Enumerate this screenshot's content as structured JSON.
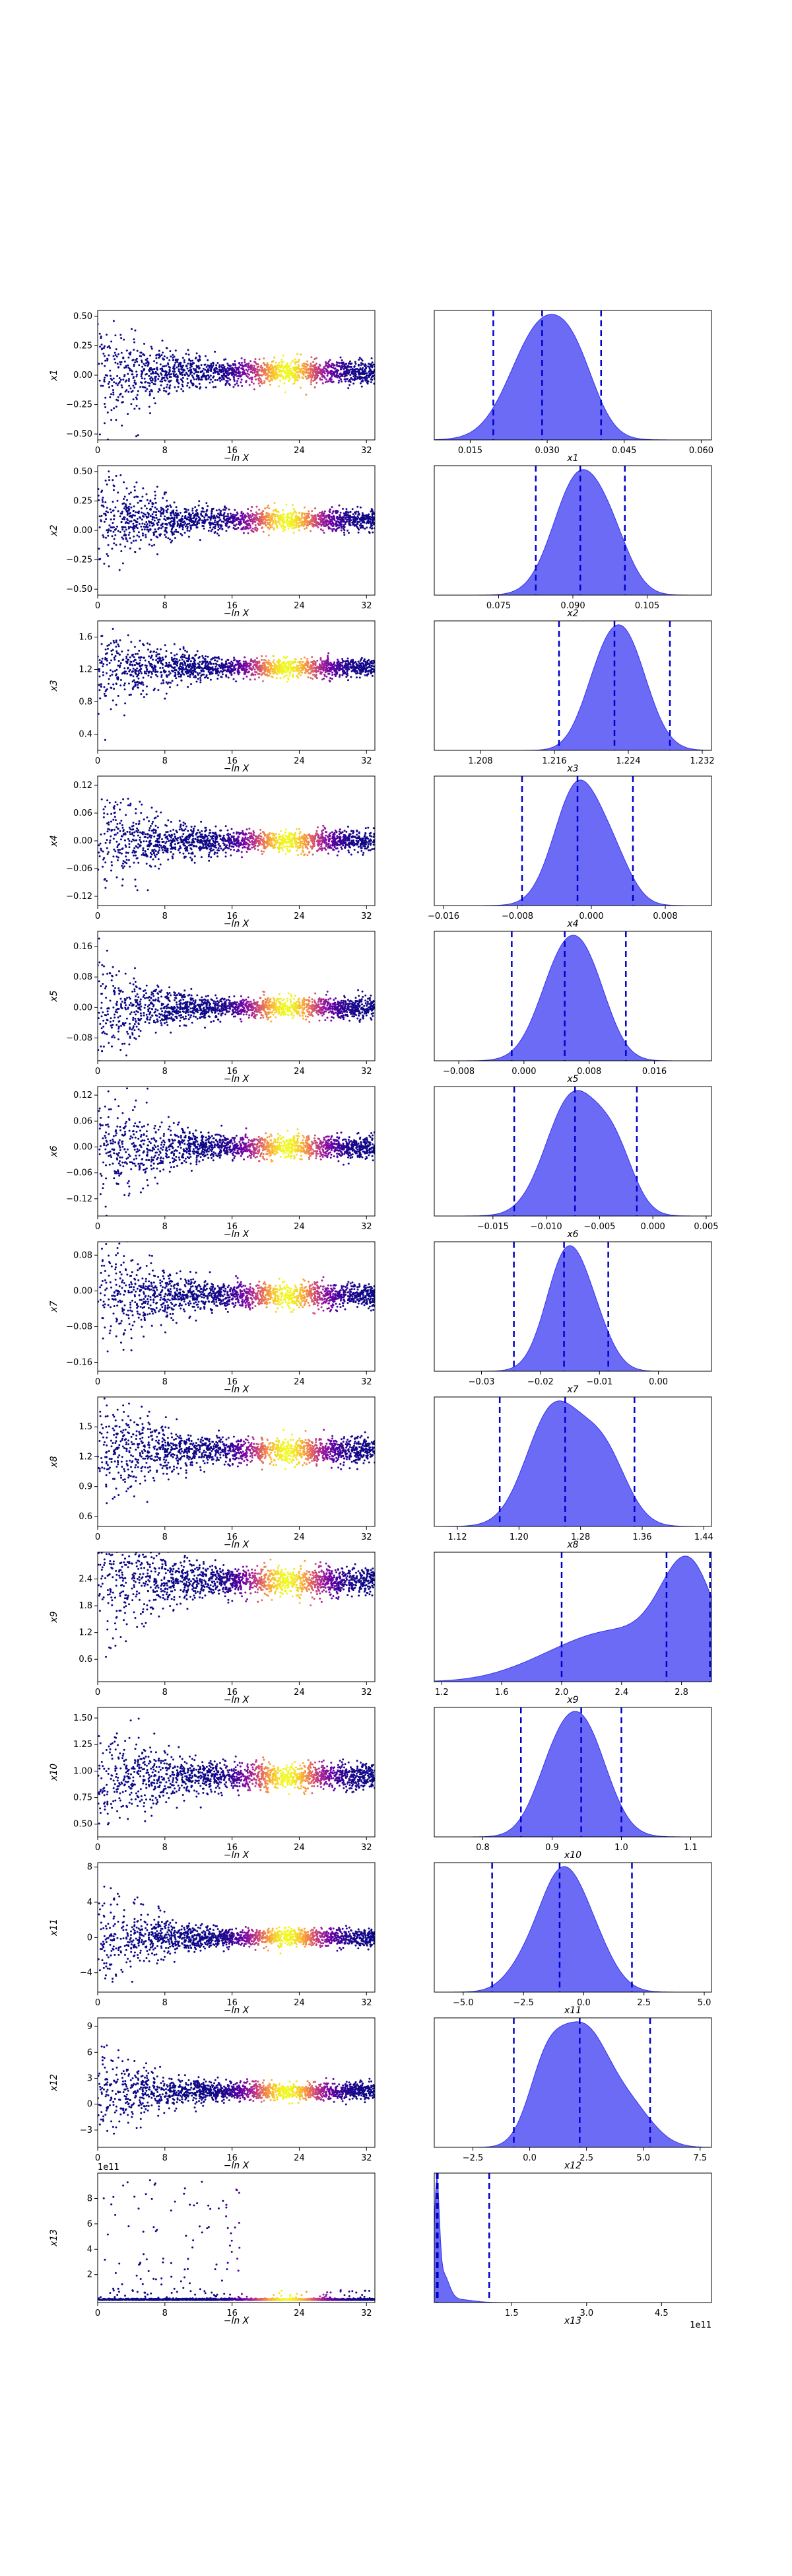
{
  "colors": {
    "kde_fill": "#5b5bf5",
    "kde_edge": "#3333ee",
    "quantile_line": "#0000cc",
    "scatter_colormap": [
      "#0d0887",
      "#6a00a8",
      "#b12a90",
      "#e16462",
      "#fca636",
      "#f0f921"
    ]
  },
  "chart_data": [
    {
      "panel": "trace",
      "param": "x1",
      "type": "scatter",
      "xlabel": "−ln X",
      "ylabel": "x1",
      "xlim": [
        0,
        33
      ],
      "ylim": [
        -0.55,
        0.55
      ],
      "xticks": [
        "0",
        "8",
        "16",
        "24",
        "32"
      ],
      "yticks": [
        "−0.50",
        "−0.25",
        "0.00",
        "0.25",
        "0.50"
      ],
      "yticks_v": [
        -0.5,
        -0.25,
        0,
        0.25,
        0.5
      ],
      "center": 0.03,
      "spread": 0.22,
      "outliers": 0.55
    },
    {
      "panel": "marginal",
      "param": "x1",
      "type": "area",
      "xlabel": "x1",
      "xlim": [
        0.008,
        0.062
      ],
      "xticks": [
        "0.015",
        "0.030",
        "0.045",
        "0.060"
      ],
      "xticks_v": [
        0.015,
        0.03,
        0.045,
        0.06
      ],
      "components": [
        [
          0.029,
          0.006,
          1.0
        ],
        [
          0.036,
          0.004,
          0.35
        ]
      ],
      "quantiles": [
        0.0195,
        0.029,
        0.0405
      ]
    },
    {
      "panel": "trace",
      "param": "x2",
      "type": "scatter",
      "xlabel": "−ln X",
      "ylabel": "x2",
      "xlim": [
        0,
        33
      ],
      "ylim": [
        -0.55,
        0.55
      ],
      "xticks": [
        "0",
        "8",
        "16",
        "24",
        "32"
      ],
      "yticks": [
        "−0.50",
        "−0.25",
        "0.00",
        "0.25",
        "0.50"
      ],
      "yticks_v": [
        -0.5,
        -0.25,
        0,
        0.25,
        0.5
      ],
      "center": 0.09,
      "spread": 0.2,
      "outliers": 0.55
    },
    {
      "panel": "marginal",
      "param": "x2",
      "type": "area",
      "xlabel": "x2",
      "xlim": [
        0.062,
        0.118
      ],
      "xticks": [
        "0.075",
        "0.090",
        "0.105"
      ],
      "xticks_v": [
        0.075,
        0.09,
        0.105
      ],
      "components": [
        [
          0.091,
          0.005,
          1.0
        ],
        [
          0.098,
          0.004,
          0.35
        ]
      ],
      "quantiles": [
        0.0825,
        0.0915,
        0.1005
      ]
    },
    {
      "panel": "trace",
      "param": "x3",
      "type": "scatter",
      "xlabel": "−ln X",
      "ylabel": "x3",
      "xlim": [
        0,
        33
      ],
      "ylim": [
        0.2,
        1.8
      ],
      "xticks": [
        "0",
        "8",
        "16",
        "24",
        "32"
      ],
      "yticks": [
        "0.4",
        "0.8",
        "1.2",
        "1.6"
      ],
      "yticks_v": [
        0.4,
        0.8,
        1.2,
        1.6
      ],
      "center": 1.22,
      "spread": 0.25,
      "outliers": 0.6
    },
    {
      "panel": "marginal",
      "param": "x3",
      "type": "area",
      "xlabel": "x3",
      "xlim": [
        1.203,
        1.233
      ],
      "xticks": [
        "1.208",
        "1.216",
        "1.224",
        "1.232"
      ],
      "xticks_v": [
        1.208,
        1.216,
        1.224,
        1.232
      ],
      "components": [
        [
          1.2235,
          0.0025,
          1.0
        ],
        [
          1.2205,
          0.002,
          0.3
        ]
      ],
      "quantiles": [
        1.2165,
        1.2225,
        1.2285
      ]
    },
    {
      "panel": "trace",
      "param": "x4",
      "type": "scatter",
      "xlabel": "−ln X",
      "ylabel": "x4",
      "xlim": [
        0,
        33
      ],
      "ylim": [
        -0.14,
        0.14
      ],
      "xticks": [
        "0",
        "8",
        "16",
        "24",
        "32"
      ],
      "yticks": [
        "−0.12",
        "−0.06",
        "0.00",
        "0.06",
        "0.12"
      ],
      "yticks_v": [
        -0.12,
        -0.06,
        0,
        0.06,
        0.12
      ],
      "center": 0.0,
      "spread": 0.05,
      "outliers": 0.13
    },
    {
      "panel": "marginal",
      "param": "x4",
      "type": "area",
      "xlabel": "x4",
      "xlim": [
        -0.017,
        0.013
      ],
      "xticks": [
        "−0.016",
        "−0.008",
        "0.000",
        "0.008"
      ],
      "xticks_v": [
        -0.016,
        -0.008,
        0,
        0.008
      ],
      "components": [
        [
          -0.0015,
          0.0025,
          1.0
        ],
        [
          0.0025,
          0.002,
          0.3
        ]
      ],
      "quantiles": [
        -0.0075,
        -0.0015,
        0.0045
      ]
    },
    {
      "panel": "trace",
      "param": "x5",
      "type": "scatter",
      "xlabel": "−ln X",
      "ylabel": "x5",
      "xlim": [
        0,
        33
      ],
      "ylim": [
        -0.14,
        0.2
      ],
      "xticks": [
        "0",
        "8",
        "16",
        "24",
        "32"
      ],
      "yticks": [
        "−0.08",
        "0.00",
        "0.08",
        "0.16"
      ],
      "yticks_v": [
        -0.08,
        0,
        0.08,
        0.16
      ],
      "center": 0.0,
      "spread": 0.06,
      "outliers": 0.17
    },
    {
      "panel": "marginal",
      "param": "x5",
      "type": "area",
      "xlabel": "x5",
      "xlim": [
        -0.011,
        0.023
      ],
      "xticks": [
        "−0.008",
        "0.000",
        "0.008",
        "0.016"
      ],
      "xticks_v": [
        -0.008,
        0,
        0.008,
        0.016
      ],
      "components": [
        [
          0.005,
          0.003,
          1.0
        ],
        [
          0.0085,
          0.0025,
          0.45
        ]
      ],
      "quantiles": [
        -0.0015,
        0.005,
        0.0125
      ]
    },
    {
      "panel": "trace",
      "param": "x6",
      "type": "scatter",
      "xlabel": "−ln X",
      "ylabel": "x6",
      "xlim": [
        0,
        33
      ],
      "ylim": [
        -0.16,
        0.14
      ],
      "xticks": [
        "0",
        "8",
        "16",
        "24",
        "32"
      ],
      "yticks": [
        "−0.12",
        "−0.06",
        "0.00",
        "0.06",
        "0.12"
      ],
      "yticks_v": [
        -0.12,
        -0.06,
        0,
        0.06,
        0.12
      ],
      "center": 0.0,
      "spread": 0.06,
      "outliers": 0.14
    },
    {
      "panel": "marginal",
      "param": "x6",
      "type": "area",
      "xlabel": "x6",
      "xlim": [
        -0.0205,
        0.0055
      ],
      "xticks": [
        "−0.015",
        "−0.010",
        "−0.005",
        "0.000",
        "0.005"
      ],
      "xticks_v": [
        -0.015,
        -0.01,
        -0.005,
        0,
        0.005
      ],
      "components": [
        [
          -0.0075,
          0.0025,
          1.0
        ],
        [
          -0.0035,
          0.0018,
          0.45
        ]
      ],
      "quantiles": [
        -0.013,
        -0.0073,
        -0.0015
      ]
    },
    {
      "panel": "trace",
      "param": "x7",
      "type": "scatter",
      "xlabel": "−ln X",
      "ylabel": "x7",
      "xlim": [
        0,
        33
      ],
      "ylim": [
        -0.18,
        0.11
      ],
      "xticks": [
        "0",
        "8",
        "16",
        "24",
        "32"
      ],
      "yticks": [
        "−0.16",
        "−0.08",
        "0.00",
        "0.08"
      ],
      "yticks_v": [
        -0.16,
        -0.08,
        0,
        0.08
      ],
      "center": -0.01,
      "spread": 0.06,
      "outliers": 0.15
    },
    {
      "panel": "marginal",
      "param": "x7",
      "type": "area",
      "xlabel": "x7",
      "xlim": [
        -0.038,
        0.009
      ],
      "xticks": [
        "−0.03",
        "−0.02",
        "−0.01",
        "0.00"
      ],
      "xticks_v": [
        -0.03,
        -0.02,
        -0.01,
        0
      ],
      "components": [
        [
          -0.0155,
          0.0035,
          1.0
        ],
        [
          -0.0105,
          0.003,
          0.25
        ]
      ],
      "quantiles": [
        -0.0245,
        -0.016,
        -0.0085
      ]
    },
    {
      "panel": "trace",
      "param": "x8",
      "type": "scatter",
      "xlabel": "−ln X",
      "ylabel": "x8",
      "xlim": [
        0,
        33
      ],
      "ylim": [
        0.5,
        1.8
      ],
      "xticks": [
        "0",
        "8",
        "16",
        "24",
        "32"
      ],
      "yticks": [
        "0.6",
        "0.9",
        "1.2",
        "1.5"
      ],
      "yticks_v": [
        0.6,
        0.9,
        1.2,
        1.5
      ],
      "center": 1.26,
      "spread": 0.28,
      "outliers": 0.55
    },
    {
      "panel": "marginal",
      "param": "x8",
      "type": "area",
      "xlabel": "x8",
      "xlim": [
        1.09,
        1.45
      ],
      "xticks": [
        "1.12",
        "1.20",
        "1.28",
        "1.36",
        "1.44"
      ],
      "xticks_v": [
        1.12,
        1.2,
        1.28,
        1.36,
        1.44
      ],
      "components": [
        [
          1.245,
          0.035,
          1.0
        ],
        [
          1.31,
          0.03,
          0.6
        ]
      ],
      "quantiles": [
        1.175,
        1.26,
        1.35
      ]
    },
    {
      "panel": "trace",
      "param": "x9",
      "type": "scatter",
      "xlabel": "−ln X",
      "ylabel": "x9",
      "xlim": [
        0,
        33
      ],
      "ylim": [
        0.1,
        3.0
      ],
      "xticks": [
        "0",
        "8",
        "16",
        "24",
        "32"
      ],
      "yticks": [
        "0.6",
        "1.2",
        "1.8",
        "2.4"
      ],
      "yticks_v": [
        0.6,
        1.2,
        1.8,
        2.4
      ],
      "center": 2.35,
      "spread": 0.7,
      "outliers": 1.4
    },
    {
      "panel": "marginal",
      "param": "x9",
      "type": "area",
      "xlabel": "x9",
      "xlim": [
        1.15,
        3.0
      ],
      "xticks": [
        "1.2",
        "1.6",
        "2.0",
        "2.4",
        "2.8"
      ],
      "xticks_v": [
        1.2,
        1.6,
        2.0,
        2.4,
        2.8
      ],
      "components": [
        [
          2.85,
          0.18,
          1.0
        ],
        [
          2.4,
          0.35,
          0.45
        ],
        [
          1.9,
          0.3,
          0.12
        ]
      ],
      "quantiles": [
        2.0,
        2.7,
        2.99
      ]
    },
    {
      "panel": "trace",
      "param": "x10",
      "type": "scatter",
      "xlabel": "−ln X",
      "ylabel": "x10",
      "xlim": [
        0,
        33
      ],
      "ylim": [
        0.38,
        1.6
      ],
      "xticks": [
        "0",
        "8",
        "16",
        "24",
        "32"
      ],
      "yticks": [
        "0.50",
        "0.75",
        "1.00",
        "1.25",
        "1.50"
      ],
      "yticks_v": [
        0.5,
        0.75,
        1.0,
        1.25,
        1.5
      ],
      "center": 0.95,
      "spread": 0.28,
      "outliers": 0.55
    },
    {
      "panel": "marginal",
      "param": "x10",
      "type": "area",
      "xlabel": "x10",
      "xlim": [
        0.73,
        1.13
      ],
      "xticks": [
        "0.8",
        "0.9",
        "1.0",
        "1.1"
      ],
      "xticks_v": [
        0.8,
        0.9,
        1.0,
        1.1
      ],
      "components": [
        [
          0.945,
          0.035,
          1.0
        ],
        [
          0.9,
          0.03,
          0.45
        ]
      ],
      "quantiles": [
        0.855,
        0.942,
        1.0
      ]
    },
    {
      "panel": "trace",
      "param": "x11",
      "type": "scatter",
      "xlabel": "−ln X",
      "ylabel": "x11",
      "xlim": [
        0,
        33
      ],
      "ylim": [
        -6.2,
        8.5
      ],
      "xticks": [
        "0",
        "8",
        "16",
        "24",
        "32"
      ],
      "yticks": [
        "−4",
        "0",
        "4",
        "8"
      ],
      "yticks_v": [
        -4,
        0,
        4,
        8
      ],
      "center": 0.0,
      "spread": 2.3,
      "outliers": 5.5
    },
    {
      "panel": "marginal",
      "param": "x11",
      "type": "area",
      "xlabel": "x11",
      "xlim": [
        -6.2,
        5.3
      ],
      "xticks": [
        "−5.0",
        "−2.5",
        "0.0",
        "2.5",
        "5.0"
      ],
      "xticks_v": [
        -5,
        -2.5,
        0,
        2.5,
        5
      ],
      "components": [
        [
          -1.0,
          0.9,
          1.0
        ],
        [
          0.3,
          0.9,
          0.45
        ],
        [
          -2.5,
          0.8,
          0.2
        ]
      ],
      "quantiles": [
        -3.8,
        -1.0,
        2.0
      ]
    },
    {
      "panel": "trace",
      "param": "x12",
      "type": "scatter",
      "xlabel": "−ln X",
      "ylabel": "x12",
      "xlim": [
        0,
        33
      ],
      "ylim": [
        -5.0,
        10.0
      ],
      "xticks": [
        "0",
        "8",
        "16",
        "24",
        "32"
      ],
      "yticks": [
        "−3",
        "0",
        "3",
        "6",
        "9"
      ],
      "yticks_v": [
        -3,
        0,
        3,
        6,
        9
      ],
      "center": 1.5,
      "spread": 2.3,
      "outliers": 5.0
    },
    {
      "panel": "marginal",
      "param": "x12",
      "type": "area",
      "xlabel": "x12",
      "xlim": [
        -4.2,
        8.0
      ],
      "xticks": [
        "−2.5",
        "0.0",
        "2.5",
        "5.0",
        "7.5"
      ],
      "xticks_v": [
        -2.5,
        0,
        2.5,
        5,
        7.5
      ],
      "components": [
        [
          2.4,
          1.1,
          1.0
        ],
        [
          0.7,
          0.8,
          0.6
        ],
        [
          4.5,
          1.0,
          0.3
        ]
      ],
      "quantiles": [
        -0.7,
        2.2,
        5.3
      ]
    },
    {
      "panel": "trace",
      "param": "x13",
      "type": "scatter",
      "xlabel": "−ln X",
      "ylabel": "x13",
      "xlim": [
        0,
        33
      ],
      "ylim": [
        -0.2,
        10.0
      ],
      "xticks": [
        "0",
        "8",
        "16",
        "24",
        "32"
      ],
      "yticks": [
        "2",
        "4",
        "6",
        "8"
      ],
      "yticks_v": [
        2,
        4,
        6,
        8
      ],
      "offset": "1e11",
      "center": 0.0,
      "spread": 0.0,
      "outliers": 9.5,
      "sparse": true
    },
    {
      "panel": "marginal",
      "param": "x13",
      "type": "area",
      "xlabel": "x13",
      "xlim": [
        -0.05,
        5.5
      ],
      "xticks": [
        "1.5",
        "3.0",
        "4.5"
      ],
      "xticks_v": [
        1.5,
        3.0,
        4.5
      ],
      "offset": "1e11",
      "components": [
        [
          0.0,
          0.05,
          1.0
        ],
        [
          0.12,
          0.12,
          0.25
        ],
        [
          0.4,
          0.3,
          0.03
        ]
      ],
      "quantiles": [
        0.0,
        0.02,
        1.05
      ]
    }
  ]
}
